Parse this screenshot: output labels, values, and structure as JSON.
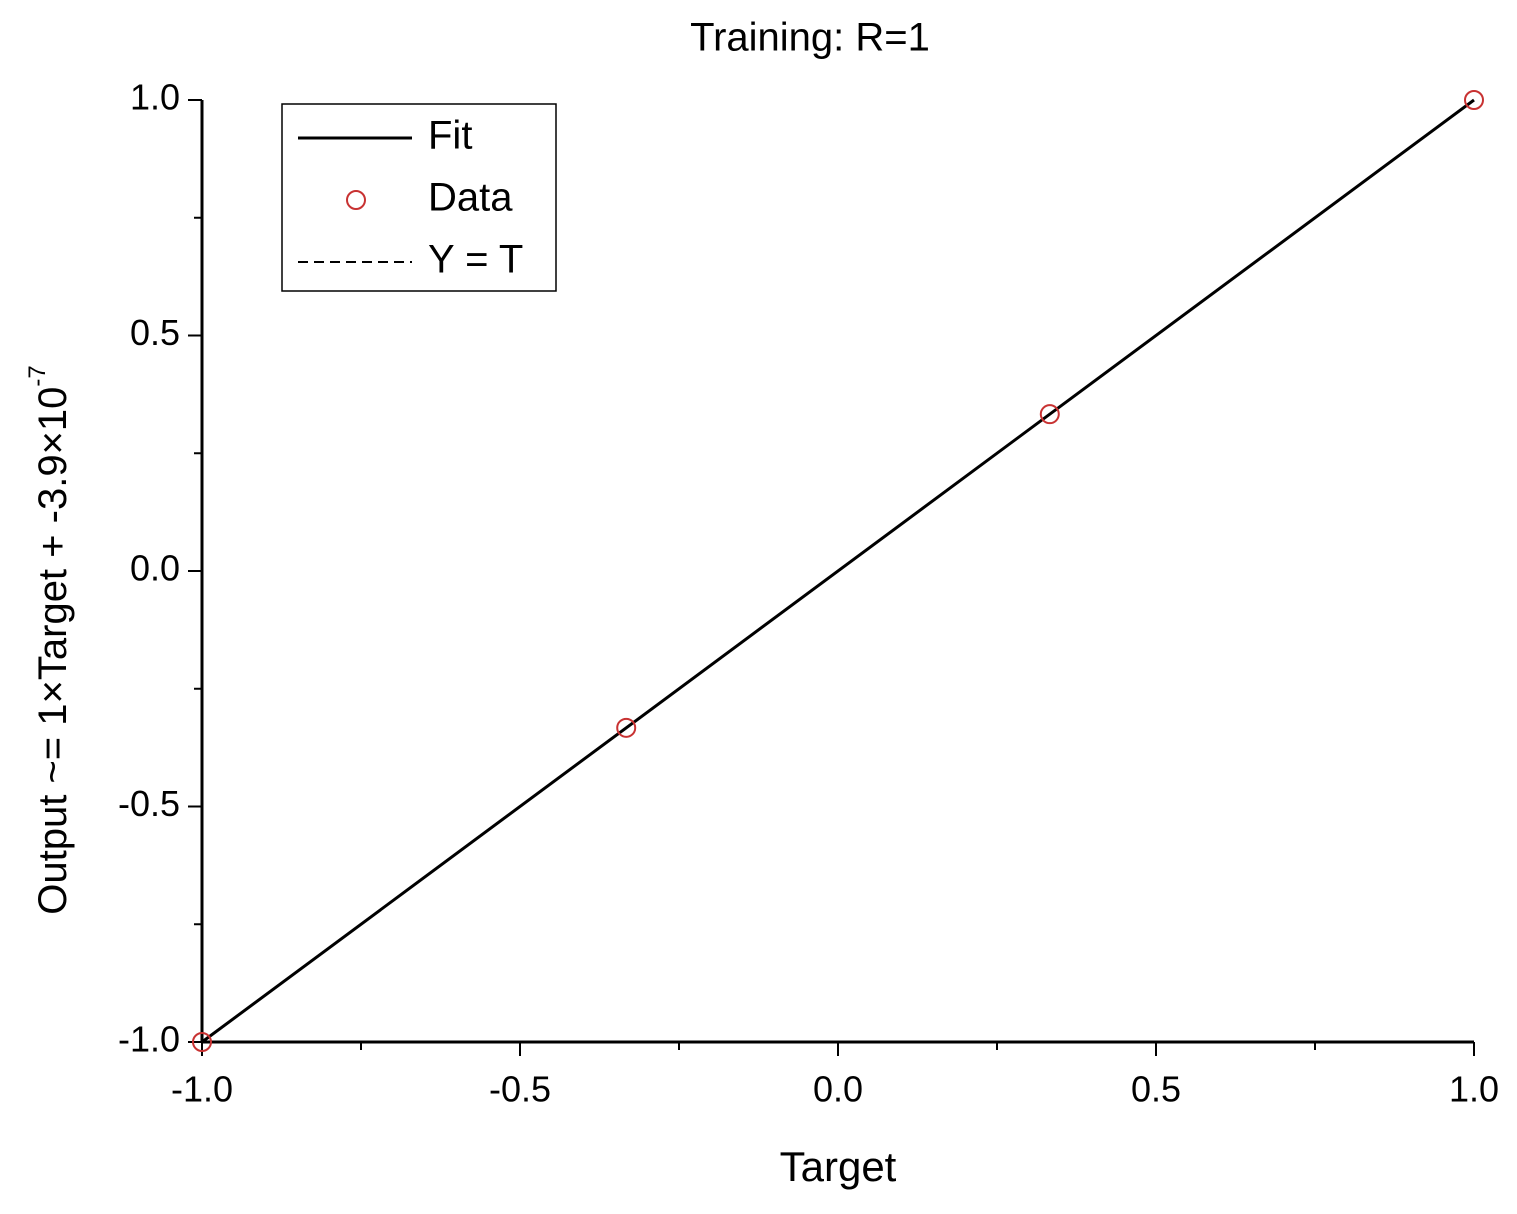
{
  "chart_data": {
    "type": "scatter",
    "title": "Training: R=1",
    "xlabel": "Target",
    "ylabel": "Output ~= 1×Target + -3.9×10",
    "ylabel_exponent": "-7",
    "xlim": [
      -1,
      1
    ],
    "ylim": [
      -1,
      1
    ],
    "xticks": [
      {
        "value": -1,
        "label": "-1.0"
      },
      {
        "value": -0.5,
        "label": "-0.5"
      },
      {
        "value": 0,
        "label": "0.0"
      },
      0.5,
      {
        "value": 1,
        "label": "1.0"
      }
    ],
    "yticks": [
      {
        "value": -1,
        "label": "-1.0"
      },
      {
        "value": -0.5,
        "label": "-0.5"
      },
      {
        "value": 0,
        "label": "0.0"
      },
      0.5,
      {
        "value": 1,
        "label": "1.0"
      }
    ],
    "xminor_ticks": [
      -0.75,
      -0.25,
      0.25,
      0.75
    ],
    "yminor_ticks": [
      -0.75,
      -0.25,
      0.25,
      0.75
    ],
    "legend": "upper left",
    "series": [
      {
        "name": "Fit",
        "color": "#000000",
        "style": "solid",
        "x": [
          -1,
          1
        ],
        "values": [
          -1,
          1
        ]
      },
      {
        "name": "Data",
        "color": "#c83232",
        "style": "marker",
        "x": [
          -1,
          -0.333,
          0.333,
          1
        ],
        "values": [
          -1,
          -0.333,
          0.333,
          1
        ]
      },
      {
        "name": "Y = T",
        "color": "#000000",
        "style": "dashed",
        "x": [
          -1,
          1
        ],
        "values": [
          -1,
          1
        ]
      }
    ]
  }
}
